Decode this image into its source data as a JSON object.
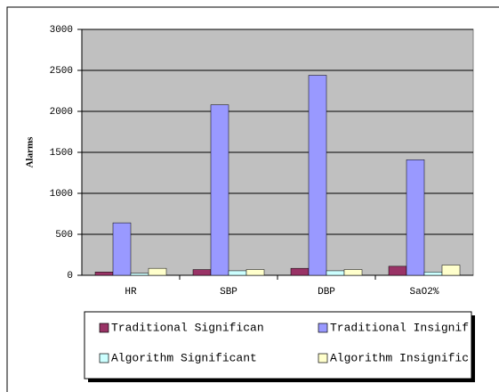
{
  "chart_data": {
    "type": "bar",
    "y_label": "Alarms",
    "categories": [
      "HR",
      "SBP",
      "DBP",
      "SaO2%"
    ],
    "series": [
      {
        "name": "Traditional Significan",
        "color": "#993366",
        "values": [
          40,
          70,
          85,
          110
        ]
      },
      {
        "name": "Traditional Insignif",
        "color": "#9999ff",
        "values": [
          640,
          2080,
          2440,
          1410
        ]
      },
      {
        "name": "Algorithm Significant",
        "color": "#ccffff",
        "values": [
          25,
          55,
          55,
          40
        ]
      },
      {
        "name": "Algorithm Insignific",
        "color": "#ffffcc",
        "values": [
          85,
          70,
          70,
          125
        ]
      }
    ],
    "ylim": [
      0,
      3000
    ],
    "yticks": [
      0,
      500,
      1000,
      1500,
      2000,
      2500,
      3000
    ],
    "grid": true,
    "plot_background": "#c0c0c0",
    "legend": "bottom"
  }
}
